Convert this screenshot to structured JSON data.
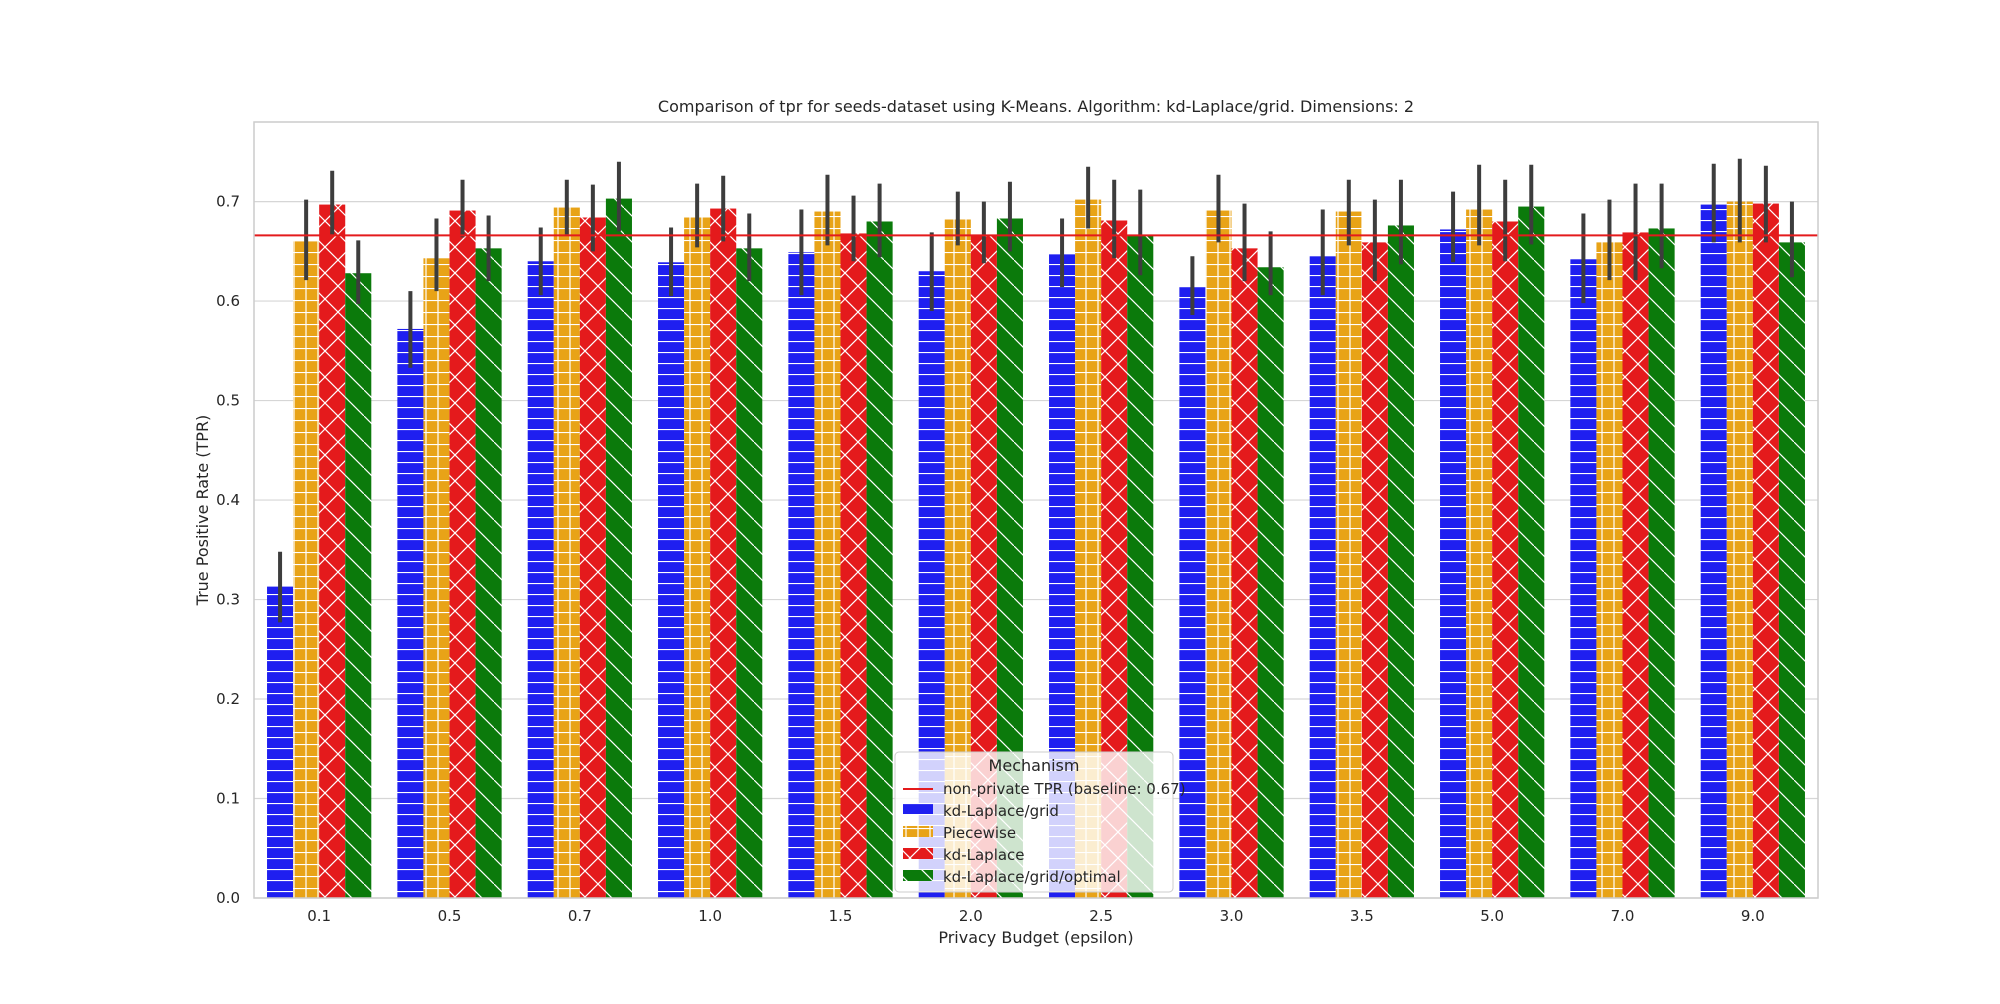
{
  "chart_data": {
    "type": "bar",
    "title": "Comparison of tpr for seeds-dataset using K-Means. Algorithm: kd-Laplace/grid. Dimensions: 2",
    "xlabel": "Privacy Budget (epsilon)",
    "ylabel": "True Positive Rate (TPR)",
    "ylim": [
      0.0,
      0.78
    ],
    "yticks": [
      "0.0",
      "0.1",
      "0.2",
      "0.3",
      "0.4",
      "0.5",
      "0.6",
      "0.7"
    ],
    "grid": true,
    "categories": [
      "0.1",
      "0.5",
      "0.7",
      "1.0",
      "1.5",
      "2.0",
      "2.5",
      "3.0",
      "3.5",
      "5.0",
      "7.0",
      "9.0"
    ],
    "series": [
      {
        "name": "kd-Laplace/grid",
        "color": "#1f1ff0",
        "hatch": "horizontal",
        "values": [
          0.313,
          0.572,
          0.64,
          0.639,
          0.649,
          0.63,
          0.647,
          0.614,
          0.645,
          0.672,
          0.642,
          0.697
        ],
        "err_low": [
          0.277,
          0.533,
          0.606,
          0.605,
          0.606,
          0.59,
          0.614,
          0.586,
          0.606,
          0.639,
          0.598,
          0.659
        ],
        "err_high": [
          0.348,
          0.61,
          0.674,
          0.674,
          0.692,
          0.669,
          0.683,
          0.645,
          0.692,
          0.71,
          0.688,
          0.738
        ]
      },
      {
        "name": "Piecewise",
        "color": "#e8a317",
        "hatch": "grid",
        "values": [
          0.66,
          0.643,
          0.694,
          0.684,
          0.69,
          0.682,
          0.702,
          0.691,
          0.69,
          0.692,
          0.659,
          0.7
        ],
        "err_low": [
          0.621,
          0.61,
          0.667,
          0.654,
          0.656,
          0.656,
          0.673,
          0.659,
          0.656,
          0.656,
          0.621,
          0.659
        ],
        "err_high": [
          0.702,
          0.683,
          0.722,
          0.718,
          0.727,
          0.71,
          0.735,
          0.727,
          0.722,
          0.737,
          0.702,
          0.743
        ]
      },
      {
        "name": "kd-Laplace",
        "color": "#e41a1c",
        "hatch": "cross",
        "values": [
          0.697,
          0.691,
          0.684,
          0.693,
          0.668,
          0.666,
          0.681,
          0.653,
          0.659,
          0.68,
          0.669,
          0.698
        ],
        "err_low": [
          0.667,
          0.664,
          0.65,
          0.66,
          0.64,
          0.638,
          0.643,
          0.62,
          0.62,
          0.64,
          0.621,
          0.659
        ],
        "err_high": [
          0.731,
          0.722,
          0.717,
          0.726,
          0.706,
          0.7,
          0.722,
          0.698,
          0.702,
          0.722,
          0.718,
          0.736
        ]
      },
      {
        "name": "kd-Laplace/grid/optimal",
        "color": "#0b7a0b",
        "hatch": "diagonal",
        "values": [
          0.628,
          0.653,
          0.703,
          0.653,
          0.68,
          0.683,
          0.666,
          0.634,
          0.676,
          0.695,
          0.673,
          0.659
        ],
        "err_low": [
          0.597,
          0.62,
          0.67,
          0.62,
          0.644,
          0.65,
          0.626,
          0.606,
          0.637,
          0.657,
          0.633,
          0.624
        ],
        "err_high": [
          0.661,
          0.686,
          0.74,
          0.688,
          0.718,
          0.72,
          0.712,
          0.67,
          0.722,
          0.737,
          0.718,
          0.7
        ]
      }
    ],
    "baseline": {
      "label": "non-private TPR (baseline: 0.67)",
      "value": 0.666,
      "color": "#e41a1c"
    },
    "legend": {
      "title": "Mechanism",
      "placement": "bottom-center"
    }
  }
}
